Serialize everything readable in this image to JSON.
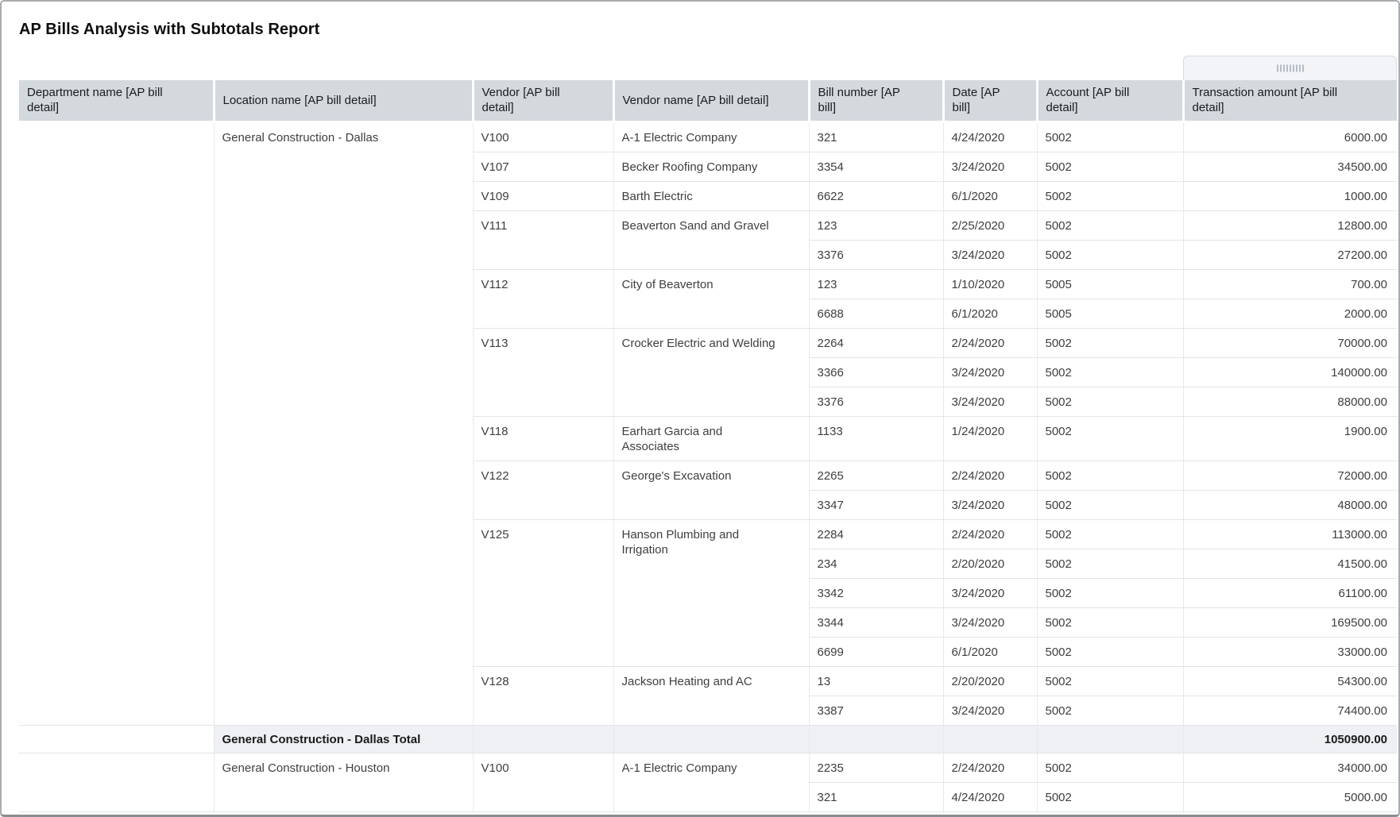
{
  "title": "AP Bills Analysis with Subtotals Report",
  "drag_handle": {
    "icon": "grip-dots-icon"
  },
  "table": {
    "columns": [
      {
        "id": "department",
        "label": "Department name [AP bill\ndetail]"
      },
      {
        "id": "location",
        "label": "Location name [AP bill detail]"
      },
      {
        "id": "vendor",
        "label": "Vendor [AP bill\ndetail]"
      },
      {
        "id": "vendor_name",
        "label": "Vendor name [AP bill detail]"
      },
      {
        "id": "bill_number",
        "label": "Bill number [AP\nbill]"
      },
      {
        "id": "date",
        "label": "Date [AP\nbill]"
      },
      {
        "id": "account",
        "label": "Account [AP bill\ndetail]"
      },
      {
        "id": "amount",
        "label": "Transaction amount [AP bill\ndetail]"
      }
    ],
    "groups": [
      {
        "location": "General Construction - Dallas",
        "vendors": [
          {
            "code": "V100",
            "name": "A-1 Electric Company",
            "bills": [
              {
                "bill": "321",
                "date": "4/24/2020",
                "account": "5002",
                "amount": "6000.00"
              }
            ]
          },
          {
            "code": "V107",
            "name": "Becker Roofing Company",
            "bills": [
              {
                "bill": "3354",
                "date": "3/24/2020",
                "account": "5002",
                "amount": "34500.00"
              }
            ]
          },
          {
            "code": "V109",
            "name": "Barth Electric",
            "bills": [
              {
                "bill": "6622",
                "date": "6/1/2020",
                "account": "5002",
                "amount": "1000.00"
              }
            ]
          },
          {
            "code": "V111",
            "name": "Beaverton Sand and Gravel",
            "bills": [
              {
                "bill": "123",
                "date": "2/25/2020",
                "account": "5002",
                "amount": "12800.00"
              },
              {
                "bill": "3376",
                "date": "3/24/2020",
                "account": "5002",
                "amount": "27200.00"
              }
            ]
          },
          {
            "code": "V112",
            "name": "City of Beaverton",
            "bills": [
              {
                "bill": "123",
                "date": "1/10/2020",
                "account": "5005",
                "amount": "700.00"
              },
              {
                "bill": "6688",
                "date": "6/1/2020",
                "account": "5005",
                "amount": "2000.00"
              }
            ]
          },
          {
            "code": "V113",
            "name": "Crocker Electric and Welding",
            "bills": [
              {
                "bill": "2264",
                "date": "2/24/2020",
                "account": "5002",
                "amount": "70000.00"
              },
              {
                "bill": "3366",
                "date": "3/24/2020",
                "account": "5002",
                "amount": "140000.00"
              },
              {
                "bill": "3376",
                "date": "3/24/2020",
                "account": "5002",
                "amount": "88000.00"
              }
            ]
          },
          {
            "code": "V118",
            "name": "Earhart Garcia and\nAssociates",
            "bills": [
              {
                "bill": "1133",
                "date": "1/24/2020",
                "account": "5002",
                "amount": "1900.00"
              }
            ]
          },
          {
            "code": "V122",
            "name": "George's Excavation",
            "bills": [
              {
                "bill": "2265",
                "date": "2/24/2020",
                "account": "5002",
                "amount": "72000.00"
              },
              {
                "bill": "3347",
                "date": "3/24/2020",
                "account": "5002",
                "amount": "48000.00"
              }
            ]
          },
          {
            "code": "V125",
            "name": "Hanson Plumbing and\nIrrigation",
            "bills": [
              {
                "bill": "2284",
                "date": "2/24/2020",
                "account": "5002",
                "amount": "113000.00"
              },
              {
                "bill": "234",
                "date": "2/20/2020",
                "account": "5002",
                "amount": "41500.00"
              },
              {
                "bill": "3342",
                "date": "3/24/2020",
                "account": "5002",
                "amount": "61100.00"
              },
              {
                "bill": "3344",
                "date": "3/24/2020",
                "account": "5002",
                "amount": "169500.00"
              },
              {
                "bill": "6699",
                "date": "6/1/2020",
                "account": "5002",
                "amount": "33000.00"
              }
            ]
          },
          {
            "code": "V128",
            "name": "Jackson Heating and AC",
            "bills": [
              {
                "bill": "13",
                "date": "2/20/2020",
                "account": "5002",
                "amount": "54300.00"
              },
              {
                "bill": "3387",
                "date": "3/24/2020",
                "account": "5002",
                "amount": "74400.00"
              }
            ]
          }
        ],
        "total_label": "General Construction - Dallas Total",
        "total_amount": "1050900.00"
      },
      {
        "location": "General Construction - Houston",
        "vendors": [
          {
            "code": "V100",
            "name": "A-1 Electric Company",
            "bills": [
              {
                "bill": "2235",
                "date": "2/24/2020",
                "account": "5002",
                "amount": "34000.00"
              },
              {
                "bill": "321",
                "date": "4/24/2020",
                "account": "5002",
                "amount": "5000.00"
              }
            ]
          }
        ]
      }
    ]
  }
}
